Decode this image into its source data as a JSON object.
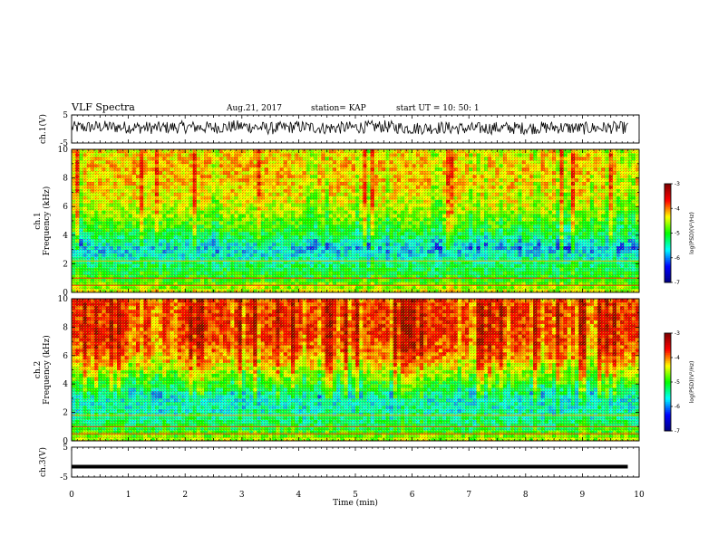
{
  "header": {
    "title": "VLF Spectra",
    "date": "Aug.21, 2017",
    "station": "station= KAP",
    "start": "start  UT =   10: 50: 1"
  },
  "colors": {
    "spectrum": [
      "#00007f",
      "#0000ff",
      "#00ffff",
      "#00ff00",
      "#ffff00",
      "#ff0000",
      "#7f0000"
    ]
  },
  "chart_data": [
    {
      "type": "line",
      "panel": "ch1-waveform",
      "ylabel": "ch.1(V)",
      "ylim": [
        -5,
        5
      ],
      "yticks": [
        "5",
        "-5"
      ],
      "xlim": [
        0,
        10
      ],
      "x": [
        0,
        0.5,
        1,
        1.5,
        2,
        2.5,
        3,
        3.5,
        4,
        4.5,
        5,
        5.5,
        6,
        6.5,
        7,
        7.5,
        8,
        8.5,
        9,
        9.5,
        9.8
      ],
      "y": [
        0.5,
        0.8,
        0.6,
        0.4,
        0.7,
        0.5,
        1.0,
        0.2,
        0.8,
        0.3,
        0.6,
        0.9,
        0.2,
        0.5,
        0.1,
        0.4,
        0.3,
        0.6,
        0.2,
        0.5,
        0.4
      ]
    },
    {
      "type": "heatmap",
      "panel": "ch1-spectrogram",
      "ylabel": "ch.1\nFrequency (kHz)",
      "ylim": [
        0,
        10
      ],
      "yticks": [
        "0",
        "2",
        "4",
        "6",
        "8",
        "10"
      ],
      "xlim": [
        0,
        10
      ],
      "colorbar": {
        "label": "log(PSD)(V²/Hz)",
        "range": [
          -7,
          -3
        ],
        "ticks": [
          "-3",
          "-4",
          "-5",
          "-6",
          "-7"
        ]
      },
      "freq_kHz": [
        0,
        1,
        2,
        3,
        4,
        5,
        6,
        7,
        8,
        9,
        10
      ],
      "log_psd": [
        -4.4,
        -5.0,
        -5.3,
        -5.8,
        -5.2,
        -4.8,
        -4.5,
        -4.3,
        -4.2,
        -4.2,
        -4.3
      ]
    },
    {
      "type": "heatmap",
      "panel": "ch2-spectrogram",
      "ylabel": "ch.2\nFrequency (kHz)",
      "ylim": [
        0,
        10
      ],
      "yticks": [
        "0",
        "2",
        "4",
        "6",
        "8",
        "10"
      ],
      "xlim": [
        0,
        10
      ],
      "colorbar": {
        "label": "log(PSD)(V²/Hz)",
        "range": [
          -7,
          -3
        ],
        "ticks": [
          "-3",
          "-4",
          "-5",
          "-6",
          "-7"
        ]
      },
      "freq_kHz": [
        0,
        1,
        2,
        3,
        4,
        5,
        6,
        7,
        8,
        9,
        10
      ],
      "log_psd": [
        -4.5,
        -5.2,
        -5.5,
        -5.6,
        -5.0,
        -4.5,
        -4.0,
        -3.8,
        -3.7,
        -3.7,
        -3.8
      ]
    },
    {
      "type": "line",
      "panel": "ch3-waveform",
      "ylabel": "ch.3(V)",
      "ylim": [
        -5,
        5
      ],
      "yticks": [
        "5",
        "-5"
      ],
      "xlim": [
        0,
        10
      ],
      "x": [
        0,
        9.8
      ],
      "y": [
        -1.5,
        -1.5
      ]
    }
  ],
  "xaxis": {
    "label": "Time  (min)",
    "ticks": [
      "0",
      "1",
      "2",
      "3",
      "4",
      "5",
      "6",
      "7",
      "8",
      "9",
      "10"
    ]
  }
}
